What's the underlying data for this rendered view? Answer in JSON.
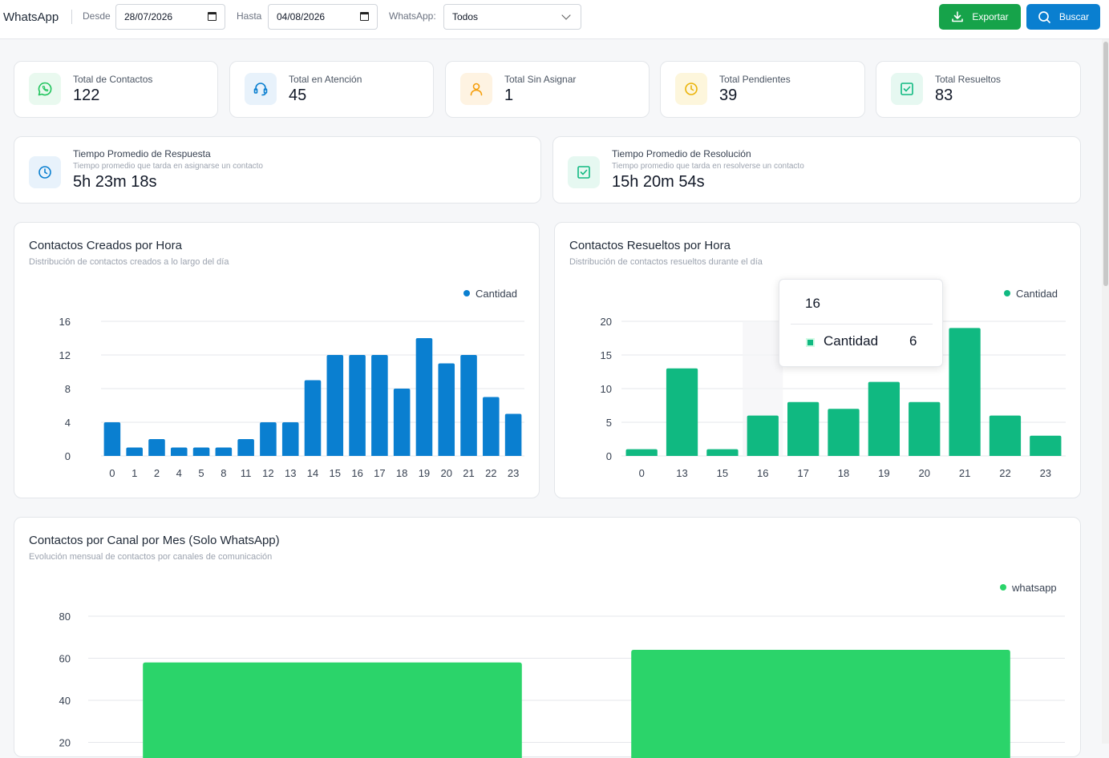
{
  "header": {
    "title": "WhatsApp",
    "desde_label": "Desde",
    "desde_value": "28/07/2026",
    "hasta_label": "Hasta",
    "hasta_value": "04/08/2026",
    "whatsapp_label": "WhatsApp:",
    "whatsapp_value": "Todos",
    "export_label": "Exportar",
    "search_label": "Buscar"
  },
  "stats": [
    {
      "label": "Total de Contactos",
      "value": "122",
      "icon": "whatsapp-icon",
      "color": "#22c55e"
    },
    {
      "label": "Total en Atención",
      "value": "45",
      "icon": "headset-icon",
      "color": "#0a7fd0"
    },
    {
      "label": "Total Sin Asignar",
      "value": "1",
      "icon": "user-icon",
      "color": "#f59e0b"
    },
    {
      "label": "Total Pendientes",
      "value": "39",
      "icon": "clock-icon",
      "color": "#eab308"
    },
    {
      "label": "Total Resueltos",
      "value": "83",
      "icon": "check-square-icon",
      "color": "#10b981"
    }
  ],
  "times": [
    {
      "label": "Tiempo Promedio de Respuesta",
      "sub": "Tiempo promedio que tarda en asignarse un contacto",
      "value": "5h 23m 18s",
      "icon": "clock-icon",
      "color": "#0a7fd0"
    },
    {
      "label": "Tiempo Promedio de Resolución",
      "sub": "Tiempo promedio que tarda en resolverse un contacto",
      "value": "15h 20m 54s",
      "icon": "check-square-icon",
      "color": "#10b981"
    }
  ],
  "charts_text": [
    {
      "title": "Contactos Creados por Hora",
      "subtitle": "Distribución de contactos creados a lo largo del día"
    },
    {
      "title": "Contactos Resueltos por Hora",
      "subtitle": "Distribución de contactos resueltos durante el día"
    },
    {
      "title": "Contactos por Canal por Mes (Solo WhatsApp)",
      "subtitle": "Evolución mensual de contactos por canales de comunicación"
    }
  ],
  "tooltip": {
    "title": "16",
    "series": "Cantidad",
    "value": "6"
  },
  "chart_data": [
    {
      "type": "bar",
      "title": "Contactos Creados por Hora",
      "categories": [
        "0",
        "1",
        "2",
        "4",
        "5",
        "8",
        "11",
        "12",
        "13",
        "14",
        "15",
        "16",
        "17",
        "18",
        "19",
        "20",
        "21",
        "22",
        "23"
      ],
      "series": [
        {
          "name": "Cantidad",
          "values": [
            4,
            1,
            2,
            1,
            1,
            1,
            2,
            4,
            4,
            9,
            12,
            12,
            12,
            8,
            14,
            11,
            12,
            7,
            5
          ]
        }
      ],
      "yticks": [
        0,
        4,
        8,
        12,
        16
      ],
      "ylim": [
        0,
        16
      ],
      "color": "#0a7fd0",
      "legend": "top-right",
      "grid": true
    },
    {
      "type": "bar",
      "title": "Contactos Resueltos por Hora",
      "categories": [
        "0",
        "13",
        "15",
        "16",
        "17",
        "18",
        "19",
        "20",
        "21",
        "22",
        "23"
      ],
      "series": [
        {
          "name": "Cantidad",
          "values": [
            1,
            13,
            1,
            6,
            8,
            7,
            11,
            8,
            19,
            6,
            3
          ]
        }
      ],
      "yticks": [
        0,
        5,
        10,
        15,
        20
      ],
      "ylim": [
        0,
        20
      ],
      "color": "#10b981",
      "legend": "top-right",
      "grid": true
    },
    {
      "type": "bar",
      "title": "Contactos por Canal por Mes (Solo WhatsApp)",
      "categories": [
        "",
        ""
      ],
      "series": [
        {
          "name": "whatsapp",
          "values": [
            58,
            64
          ]
        }
      ],
      "yticks": [
        20,
        40,
        60,
        80
      ],
      "ylim": [
        0,
        80
      ],
      "color": "#2bd46a",
      "legend": "top-right",
      "grid": true
    }
  ]
}
